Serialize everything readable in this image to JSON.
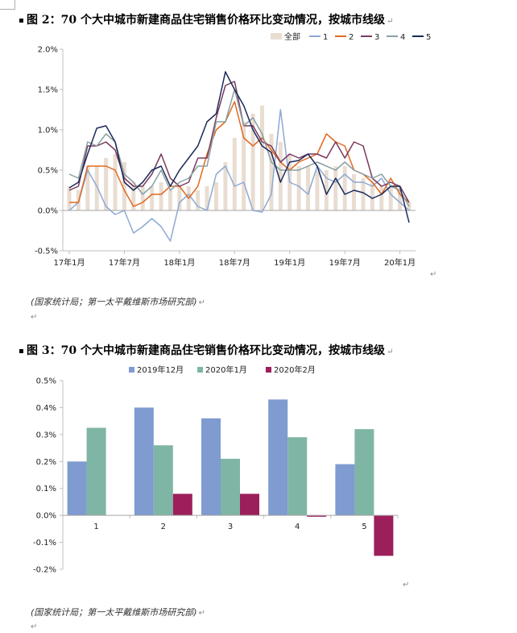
{
  "paragraph_mark": "↵",
  "figure2": {
    "title": "图 2：70 个大中城市新建商品住宅销售价格环比变动情况，按城市线级",
    "source": "(国家统计局；第一太平戴维斯市场研究部)",
    "colors": {
      "全部": "#e9ddd2",
      "1": "#8ea9d2",
      "2": "#e06a21",
      "3": "#7a3a5e",
      "4": "#8aa0a3",
      "5": "#1b2a5a"
    }
  },
  "figure3": {
    "title": "图 3：70 个大中城市新建商品住宅销售价格环比变动情况，按城市线级",
    "source": "(国家统计局；第一太平戴维斯市场研究部)",
    "colors": {
      "2019年12月": "#7f9bd0",
      "2020年1月": "#7fb5a5",
      "2020年2月": "#9c1f5c"
    }
  },
  "chart_data": [
    {
      "type": "line",
      "title": "",
      "x_tick_labels": [
        "17年1月",
        "17年7月",
        "18年1月",
        "18年7月",
        "19年1月",
        "19年7月",
        "20年1月"
      ],
      "x": [
        "2017-01",
        "2017-02",
        "2017-03",
        "2017-04",
        "2017-05",
        "2017-06",
        "2017-07",
        "2017-08",
        "2017-09",
        "2017-10",
        "2017-11",
        "2017-12",
        "2018-01",
        "2018-02",
        "2018-03",
        "2018-04",
        "2018-05",
        "2018-06",
        "2018-07",
        "2018-08",
        "2018-09",
        "2018-10",
        "2018-11",
        "2018-12",
        "2019-01",
        "2019-02",
        "2019-03",
        "2019-04",
        "2019-05",
        "2019-06",
        "2019-07",
        "2019-08",
        "2019-09",
        "2019-10",
        "2019-11",
        "2019-12",
        "2020-01",
        "2020-02"
      ],
      "y_tick_labels": [
        "-0.5%",
        "0.0%",
        "0.5%",
        "1.0%",
        "1.5%",
        "2.0%"
      ],
      "ylim": [
        -0.5,
        2.0
      ],
      "y_unit": "%",
      "legend": "top-right",
      "series": [
        {
          "name": "全部",
          "render": "bar",
          "values": [
            0.3,
            0.25,
            0.55,
            0.55,
            0.65,
            0.7,
            0.6,
            0.35,
            0.3,
            0.3,
            0.35,
            0.25,
            0.3,
            0.3,
            0.25,
            0.3,
            0.35,
            0.6,
            0.9,
            1.1,
            1.2,
            1.3,
            0.95,
            0.85,
            0.7,
            0.55,
            0.55,
            0.5,
            0.5,
            0.55,
            0.55,
            0.45,
            0.4,
            0.35,
            0.3,
            0.3,
            0.3,
            0.1
          ]
        },
        {
          "name": "1",
          "values": [
            0.0,
            0.1,
            0.5,
            0.3,
            0.05,
            -0.05,
            0.0,
            -0.28,
            -0.2,
            -0.1,
            -0.2,
            -0.38,
            0.1,
            0.2,
            0.05,
            0.0,
            0.45,
            0.55,
            0.3,
            0.35,
            0.0,
            -0.02,
            0.2,
            1.25,
            0.35,
            0.3,
            0.2,
            0.55,
            0.4,
            0.35,
            0.45,
            0.35,
            0.35,
            0.3,
            0.4,
            0.2,
            0.1,
            0.0
          ]
        },
        {
          "name": "2",
          "values": [
            0.1,
            0.1,
            0.55,
            0.55,
            0.55,
            0.5,
            0.25,
            0.05,
            0.1,
            0.2,
            0.2,
            0.3,
            0.3,
            0.15,
            0.3,
            0.7,
            1.0,
            1.1,
            1.35,
            0.9,
            0.8,
            0.9,
            0.75,
            0.6,
            0.5,
            0.6,
            0.65,
            0.7,
            0.95,
            0.85,
            0.8,
            0.5,
            0.45,
            0.35,
            0.2,
            0.4,
            0.2,
            0.1
          ]
        },
        {
          "name": "3",
          "values": [
            0.25,
            0.3,
            0.8,
            0.8,
            0.85,
            0.75,
            0.4,
            0.3,
            0.3,
            0.45,
            0.7,
            0.4,
            0.3,
            0.35,
            0.65,
            0.65,
            1.15,
            1.55,
            1.6,
            1.05,
            1.05,
            0.85,
            0.8,
            0.6,
            0.7,
            0.65,
            0.7,
            0.7,
            0.65,
            0.85,
            0.65,
            0.85,
            0.8,
            0.4,
            0.3,
            0.35,
            0.3,
            0.1
          ]
        },
        {
          "name": "4",
          "values": [
            0.45,
            0.4,
            0.85,
            0.8,
            0.95,
            0.85,
            0.45,
            0.35,
            0.2,
            0.3,
            0.5,
            0.25,
            0.35,
            0.4,
            0.55,
            0.55,
            1.1,
            1.1,
            1.5,
            1.05,
            1.15,
            0.95,
            0.6,
            0.5,
            0.5,
            0.5,
            0.55,
            0.6,
            0.55,
            0.5,
            0.6,
            0.5,
            0.45,
            0.4,
            0.45,
            0.3,
            0.25,
            0.05
          ]
        },
        {
          "name": "5",
          "values": [
            0.28,
            0.35,
            0.7,
            1.02,
            1.05,
            0.85,
            0.35,
            0.25,
            0.35,
            0.5,
            0.55,
            0.3,
            0.5,
            0.65,
            0.8,
            1.1,
            1.2,
            1.72,
            1.5,
            1.3,
            1.0,
            0.8,
            0.72,
            0.35,
            0.6,
            0.62,
            0.7,
            0.55,
            0.2,
            0.4,
            0.2,
            0.25,
            0.22,
            0.15,
            0.2,
            0.3,
            0.3,
            -0.15
          ]
        }
      ]
    },
    {
      "type": "bar",
      "title": "",
      "categories": [
        "1",
        "2",
        "3",
        "4",
        "5"
      ],
      "y_tick_labels": [
        "-0.2%",
        "-0.1%",
        "0.0%",
        "0.1%",
        "0.2%",
        "0.3%",
        "0.4%",
        "0.5%"
      ],
      "ylim": [
        -0.2,
        0.5
      ],
      "y_unit": "%",
      "legend": "top",
      "series": [
        {
          "name": "2019年12月",
          "values": [
            0.2,
            0.4,
            0.36,
            0.43,
            0.19
          ]
        },
        {
          "name": "2020年1月",
          "values": [
            0.325,
            0.26,
            0.21,
            0.29,
            0.32
          ]
        },
        {
          "name": "2020年2月",
          "values": [
            0.0,
            0.08,
            0.08,
            -0.005,
            -0.15
          ]
        }
      ]
    }
  ]
}
